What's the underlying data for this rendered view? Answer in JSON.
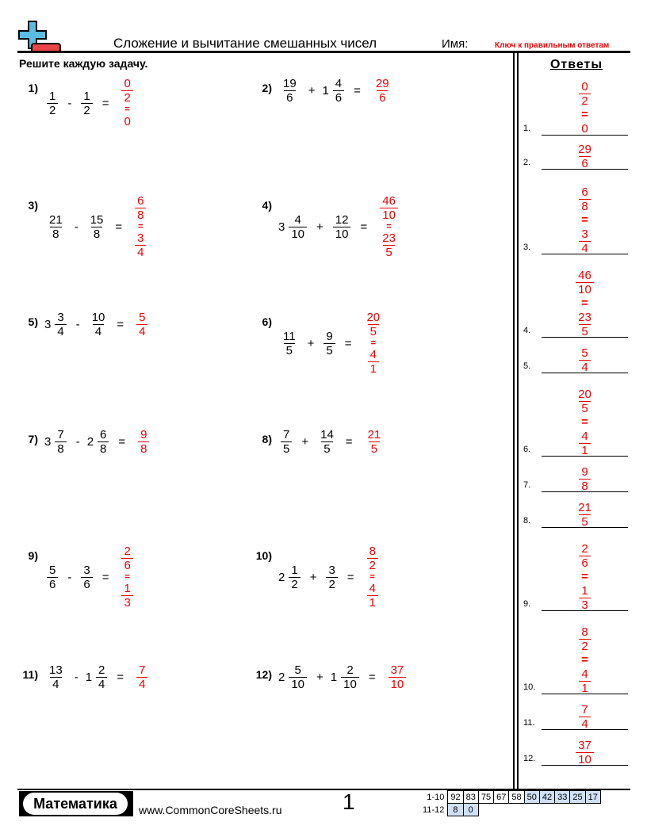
{
  "header": {
    "title": "Сложение и вычитание смешанных чисел",
    "name_label": "Имя:",
    "key_label": "Ключ к правильным ответам",
    "instructions": "Решите каждую задачу.",
    "answers_heading": "Ответы"
  },
  "equals": "=",
  "answer_color": "#e00000",
  "problems": [
    {
      "label": "1)",
      "terms": [
        {
          "num": "1",
          "den": "2"
        },
        {
          "op": "-"
        },
        {
          "num": "1",
          "den": "2"
        }
      ],
      "answer": [
        {
          "num": "0",
          "den": "2"
        },
        {
          "eq": "="
        },
        {
          "whole": "0"
        }
      ]
    },
    {
      "label": "2)",
      "terms": [
        {
          "num": "19",
          "den": "6"
        },
        {
          "op": "+"
        },
        {
          "whole": "1",
          "num": "4",
          "den": "6"
        }
      ],
      "answer": [
        {
          "num": "29",
          "den": "6"
        }
      ]
    },
    {
      "label": "3)",
      "terms": [
        {
          "num": "21",
          "den": "8"
        },
        {
          "op": "-"
        },
        {
          "num": "15",
          "den": "8"
        }
      ],
      "answer": [
        {
          "num": "6",
          "den": "8"
        },
        {
          "eq": "="
        },
        {
          "num": "3",
          "den": "4"
        }
      ]
    },
    {
      "label": "4)",
      "terms": [
        {
          "whole": "3",
          "num": "4",
          "den": "10"
        },
        {
          "op": "+"
        },
        {
          "num": "12",
          "den": "10"
        }
      ],
      "answer": [
        {
          "num": "46",
          "den": "10"
        },
        {
          "eq": "="
        },
        {
          "num": "23",
          "den": "5"
        }
      ]
    },
    {
      "label": "5)",
      "terms": [
        {
          "whole": "3",
          "num": "3",
          "den": "4"
        },
        {
          "op": "-"
        },
        {
          "num": "10",
          "den": "4"
        }
      ],
      "answer": [
        {
          "num": "5",
          "den": "4"
        }
      ]
    },
    {
      "label": "6)",
      "terms": [
        {
          "num": "11",
          "den": "5"
        },
        {
          "op": "+"
        },
        {
          "num": "9",
          "den": "5"
        }
      ],
      "answer": [
        {
          "num": "20",
          "den": "5"
        },
        {
          "eq": "="
        },
        {
          "num": "4",
          "den": "1"
        }
      ]
    },
    {
      "label": "7)",
      "terms": [
        {
          "whole": "3",
          "num": "7",
          "den": "8"
        },
        {
          "op": "-"
        },
        {
          "whole": "2",
          "num": "6",
          "den": "8"
        }
      ],
      "answer": [
        {
          "num": "9",
          "den": "8"
        }
      ]
    },
    {
      "label": "8)",
      "terms": [
        {
          "num": "7",
          "den": "5"
        },
        {
          "op": "+"
        },
        {
          "num": "14",
          "den": "5"
        }
      ],
      "answer": [
        {
          "num": "21",
          "den": "5"
        }
      ]
    },
    {
      "label": "9)",
      "terms": [
        {
          "num": "5",
          "den": "6"
        },
        {
          "op": "-"
        },
        {
          "num": "3",
          "den": "6"
        }
      ],
      "answer": [
        {
          "num": "2",
          "den": "6"
        },
        {
          "eq": "="
        },
        {
          "num": "1",
          "den": "3"
        }
      ]
    },
    {
      "label": "10)",
      "terms": [
        {
          "whole": "2",
          "num": "1",
          "den": "2"
        },
        {
          "op": "+"
        },
        {
          "num": "3",
          "den": "2"
        }
      ],
      "answer": [
        {
          "num": "8",
          "den": "2"
        },
        {
          "eq": "="
        },
        {
          "num": "4",
          "den": "1"
        }
      ]
    },
    {
      "label": "11)",
      "terms": [
        {
          "num": "13",
          "den": "4"
        },
        {
          "op": "-"
        },
        {
          "whole": "1",
          "num": "2",
          "den": "4"
        }
      ],
      "answer": [
        {
          "num": "7",
          "den": "4"
        }
      ]
    },
    {
      "label": "12)",
      "terms": [
        {
          "whole": "2",
          "num": "5",
          "den": "10"
        },
        {
          "op": "+"
        },
        {
          "whole": "1",
          "num": "2",
          "den": "10"
        }
      ],
      "answer": [
        {
          "num": "37",
          "den": "10"
        }
      ]
    }
  ],
  "answer_key_labels": [
    "1.",
    "2.",
    "3.",
    "4.",
    "5.",
    "6.",
    "7.",
    "8.",
    "9.",
    "10.",
    "11.",
    "12."
  ],
  "footer": {
    "brand": "Математика",
    "site": "www.CommonCoreSheets.ru",
    "page": "1",
    "score_rows": [
      {
        "label": "1-10",
        "values": [
          "92",
          "83",
          "75",
          "67",
          "58",
          "50",
          "42",
          "33",
          "25",
          "17"
        ],
        "highlighted_from": 5
      },
      {
        "label": "11-12",
        "values": [
          "8",
          "0"
        ],
        "highlighted_from": 0
      }
    ],
    "highlight_color": "#cfe0f7"
  }
}
